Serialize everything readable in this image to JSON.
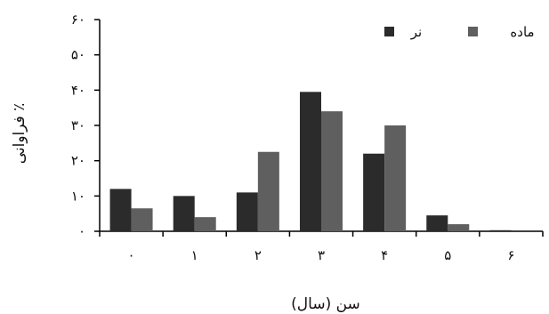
{
  "chart_data": {
    "type": "bar",
    "categories": [
      "۰",
      "۱",
      "۲",
      "۳",
      "۴",
      "۵",
      "۶"
    ],
    "series": [
      {
        "name": "نر",
        "color": "#2b2b2b",
        "values": [
          12,
          10,
          11,
          39.5,
          22,
          4.5,
          0.3
        ]
      },
      {
        "name": "ماده",
        "color": "#5f5f5f",
        "values": [
          6.5,
          4,
          22.5,
          34,
          30,
          2,
          0
        ]
      }
    ],
    "xlabel": "سن (سال)",
    "ylabel": "٪ فراوانی",
    "ylim": [
      0,
      60
    ],
    "yticks": [
      {
        "value": 0,
        "label": "۰"
      },
      {
        "value": 10,
        "label": "۱۰"
      },
      {
        "value": 20,
        "label": "۲۰"
      },
      {
        "value": 30,
        "label": "۳۰"
      },
      {
        "value": 40,
        "label": "۴۰"
      },
      {
        "value": 50,
        "label": "۵۰"
      },
      {
        "value": 60,
        "label": "۶۰"
      }
    ],
    "grid": false,
    "legend_position": "top-right"
  }
}
